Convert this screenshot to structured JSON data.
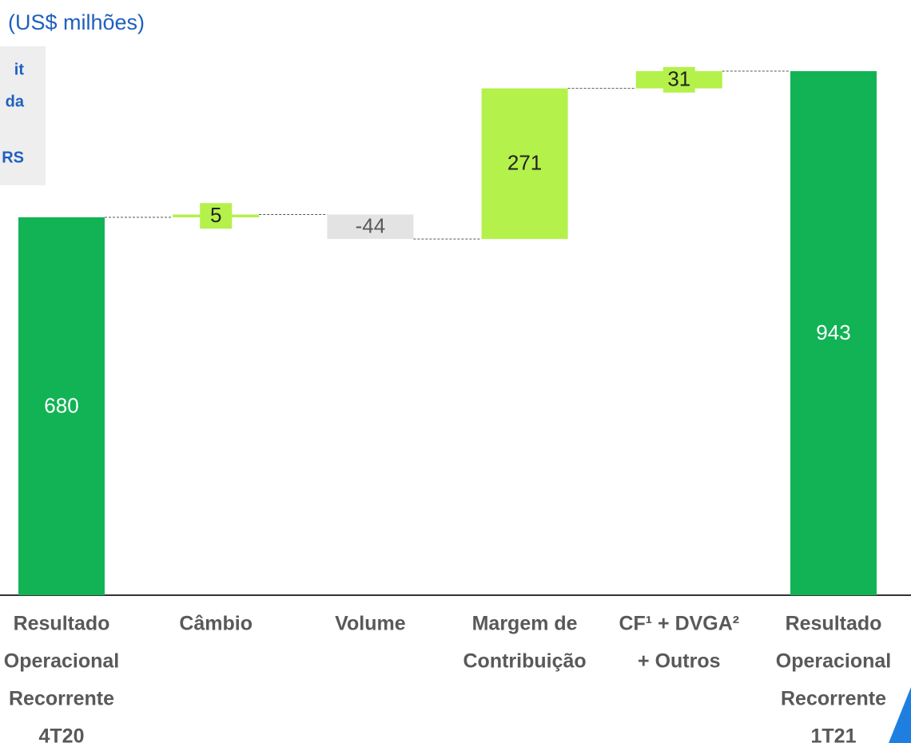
{
  "chart_data": {
    "type": "waterfall",
    "subtitle": "(US$ milhões)",
    "side_note": [
      "it",
      "da",
      "RS"
    ],
    "categories": [
      [
        "Resultado",
        "Operacional",
        "Recorrente",
        "4T20"
      ],
      [
        "Câmbio"
      ],
      [
        "Volume"
      ],
      [
        "Margem de",
        "Contribuição"
      ],
      [
        "CF¹ + DVGA²",
        "+ Outros"
      ],
      [
        "Resultado",
        "Operacional",
        "Recorrente",
        "1T21"
      ]
    ],
    "values": [
      680,
      5,
      -44,
      271,
      31,
      943
    ],
    "measures": [
      "total",
      "relative",
      "relative",
      "relative",
      "relative",
      "total"
    ],
    "colors": {
      "total": "#12b355",
      "increase": "#b4f14a",
      "decrease": "#e3e3e3"
    }
  }
}
